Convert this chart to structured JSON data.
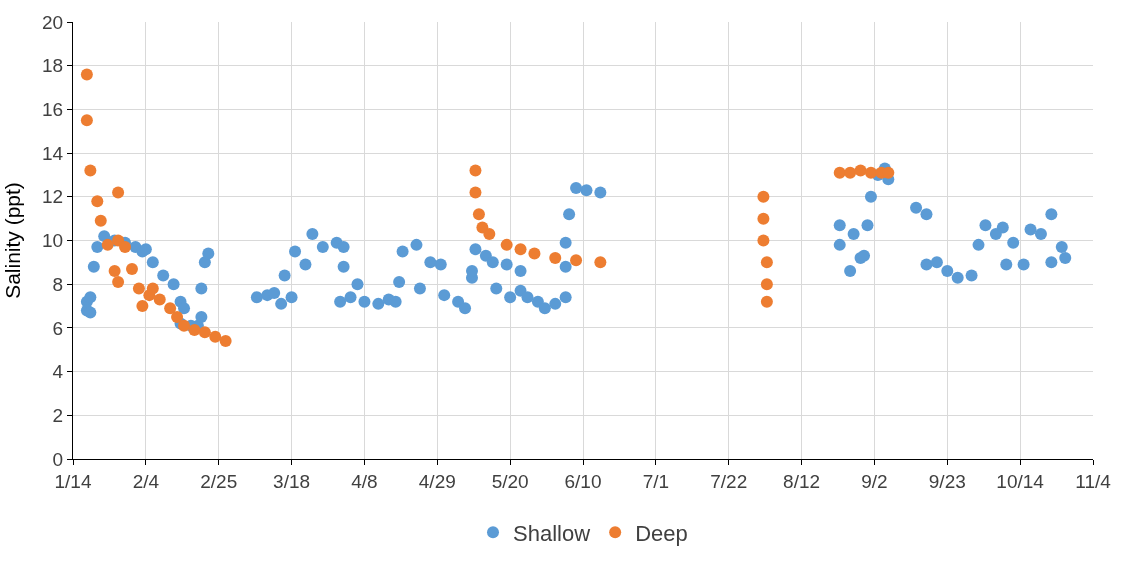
{
  "chart_data": {
    "type": "scatter",
    "ylabel": "Salinity (ppt)",
    "marker": "circle",
    "grid": true,
    "legend": "bottom",
    "xlim": [
      "--01-14",
      "--11-04"
    ],
    "xticks": [
      {
        "value": "--01-14",
        "label": "1/14"
      },
      {
        "value": "--02-04",
        "label": "2/4"
      },
      {
        "value": "--02-25",
        "label": "2/25"
      },
      {
        "value": "--03-18",
        "label": "3/18"
      },
      {
        "value": "--04-08",
        "label": "4/8"
      },
      {
        "value": "--04-29",
        "label": "4/29"
      },
      {
        "value": "--05-20",
        "label": "5/20"
      },
      {
        "value": "--06-10",
        "label": "6/10"
      },
      {
        "value": "--07-01",
        "label": "7/1"
      },
      {
        "value": "--07-22",
        "label": "7/22"
      },
      {
        "value": "--08-12",
        "label": "8/12"
      },
      {
        "value": "--09-02",
        "label": "9/2"
      },
      {
        "value": "--09-23",
        "label": "9/23"
      },
      {
        "value": "--10-14",
        "label": "10/14"
      },
      {
        "value": "--11-04",
        "label": "11/4"
      }
    ],
    "ylim": [
      0,
      20
    ],
    "yticks": [
      0,
      2,
      4,
      6,
      8,
      10,
      12,
      14,
      16,
      18,
      20
    ],
    "series": [
      {
        "name": "Shallow",
        "color": "#5b9bd5",
        "x": [
          "--01-18",
          "--01-18",
          "--01-19",
          "--01-19",
          "--01-20",
          "--01-21",
          "--01-23",
          "--01-26",
          "--01-29",
          "--02-01",
          "--02-03",
          "--02-04",
          "--02-06",
          "--02-09",
          "--02-12",
          "--02-14",
          "--02-14",
          "--02-15",
          "--02-17",
          "--02-19",
          "--02-20",
          "--02-20",
          "--02-21",
          "--02-22",
          "--03-08",
          "--03-11",
          "--03-13",
          "--03-15",
          "--03-16",
          "--03-18",
          "--03-19",
          "--03-22",
          "--03-24",
          "--03-27",
          "--03-31",
          "--04-02",
          "--04-02",
          "--04-01",
          "--04-04",
          "--04-06",
          "--04-08",
          "--04-12",
          "--04-15",
          "--04-17",
          "--04-18",
          "--04-19",
          "--04-23",
          "--04-24",
          "--04-27",
          "--04-30",
          "--05-01",
          "--05-05",
          "--05-07",
          "--05-09",
          "--05-09",
          "--05-10",
          "--05-13",
          "--05-15",
          "--05-16",
          "--05-19",
          "--05-20",
          "--05-23",
          "--05-23",
          "--05-25",
          "--05-28",
          "--05-30",
          "--06-02",
          "--06-05",
          "--06-05",
          "--06-05",
          "--06-06",
          "--06-08",
          "--06-11",
          "--06-15",
          "--08-23",
          "--08-23",
          "--08-26",
          "--08-27",
          "--08-29",
          "--08-30",
          "--08-31",
          "--09-01",
          "--09-03",
          "--09-05",
          "--09-06",
          "--09-14",
          "--09-17",
          "--09-17",
          "--09-20",
          "--09-23",
          "--09-26",
          "--09-30",
          "--10-02",
          "--10-04",
          "--10-07",
          "--10-09",
          "--10-10",
          "--10-12",
          "--10-15",
          "--10-17",
          "--10-20",
          "--10-23",
          "--10-23",
          "--10-26",
          "--10-27"
        ],
        "values": [
          7.2,
          6.8,
          6.7,
          7.4,
          8.8,
          9.7,
          10.2,
          10.0,
          9.9,
          9.7,
          9.5,
          9.6,
          9.0,
          8.4,
          8.0,
          7.2,
          6.2,
          6.9,
          6.1,
          6.1,
          6.5,
          7.8,
          9.0,
          9.4,
          7.4,
          7.5,
          7.6,
          7.1,
          8.4,
          7.4,
          9.5,
          8.9,
          10.3,
          9.7,
          9.9,
          9.7,
          8.8,
          7.2,
          7.4,
          8.0,
          7.2,
          7.1,
          7.3,
          7.2,
          8.1,
          9.5,
          9.8,
          7.8,
          9.0,
          8.9,
          7.5,
          7.2,
          6.9,
          8.3,
          8.6,
          9.6,
          9.3,
          9.0,
          7.8,
          8.9,
          7.4,
          8.6,
          7.7,
          7.4,
          7.2,
          6.9,
          7.1,
          7.4,
          8.8,
          9.9,
          11.2,
          12.4,
          12.3,
          12.2,
          10.7,
          9.8,
          8.6,
          10.3,
          9.2,
          9.3,
          10.7,
          12.0,
          13.0,
          13.3,
          12.8,
          11.5,
          11.2,
          8.9,
          9.0,
          8.6,
          8.3,
          8.4,
          9.8,
          10.7,
          10.3,
          10.6,
          8.9,
          9.9,
          8.9,
          10.5,
          10.3,
          11.2,
          9.0,
          9.7,
          9.2
        ]
      },
      {
        "name": "Deep",
        "color": "#ed7d31",
        "x": [
          "--01-18",
          "--01-18",
          "--01-19",
          "--01-21",
          "--01-22",
          "--01-24",
          "--01-26",
          "--01-27",
          "--01-27",
          "--01-27",
          "--01-29",
          "--01-31",
          "--02-02",
          "--02-03",
          "--02-05",
          "--02-06",
          "--02-08",
          "--02-11",
          "--02-13",
          "--02-15",
          "--02-18",
          "--02-21",
          "--02-24",
          "--02-27",
          "--05-10",
          "--05-10",
          "--05-11",
          "--05-12",
          "--05-14",
          "--05-19",
          "--05-23",
          "--05-27",
          "--06-02",
          "--06-08",
          "--06-15",
          "--08-01",
          "--08-01",
          "--08-01",
          "--08-02",
          "--08-02",
          "--08-02",
          "--08-23",
          "--08-26",
          "--08-29",
          "--09-01",
          "--09-04",
          "--09-06"
        ],
        "values": [
          17.6,
          15.5,
          13.2,
          11.8,
          10.9,
          9.8,
          8.6,
          8.1,
          10.0,
          12.2,
          9.7,
          8.7,
          7.8,
          7.0,
          7.5,
          7.8,
          7.3,
          6.9,
          6.5,
          6.1,
          5.9,
          5.8,
          5.6,
          5.4,
          13.2,
          12.2,
          11.2,
          10.6,
          10.3,
          9.8,
          9.6,
          9.4,
          9.2,
          9.1,
          9.0,
          12.0,
          11.0,
          10.0,
          9.0,
          8.0,
          7.2,
          13.1,
          13.1,
          13.2,
          13.1,
          13.1,
          13.1
        ]
      }
    ]
  }
}
